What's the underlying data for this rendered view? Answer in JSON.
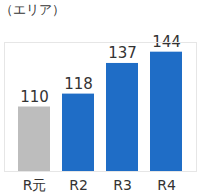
{
  "chart_data": {
    "type": "bar",
    "title": "（エリア）",
    "categories": [
      "R元",
      "R2",
      "R3",
      "R4"
    ],
    "values": [
      110,
      118,
      137,
      144
    ],
    "colors": [
      "#bdbdbd",
      "#1f6dc6",
      "#1f6dc6",
      "#1f6dc6"
    ],
    "ylim": [
      70,
      150
    ],
    "data_labels": true,
    "tick_labels": "x",
    "grid": false
  }
}
